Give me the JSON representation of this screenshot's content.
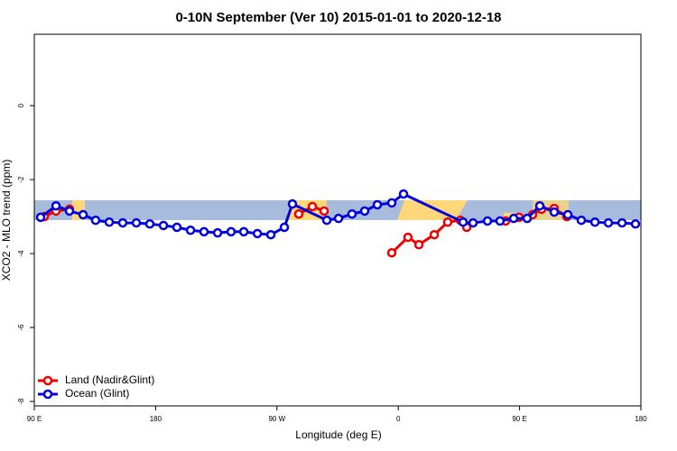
{
  "chart_data": {
    "type": "line",
    "title": "0-10N September (Ver 10)   2015-01-01 to 2020-12-18",
    "x_label": "Longitude (deg E)",
    "y_label": "XCO2 - MLO trend (ppm)",
    "xlim": [
      90,
      540
    ],
    "xticks": [
      {
        "value": 90,
        "label": "90 E"
      },
      180,
      {
        "value": 270,
        "label": "90 W"
      },
      {
        "value": 360,
        "label": "0"
      },
      {
        "value": 450,
        "label": "90 E"
      },
      {
        "value": 540,
        "label": "180"
      }
    ],
    "ylim": [
      -8.12,
      1.93
    ],
    "yticks": [
      0,
      -2,
      -4,
      -6,
      -8
    ],
    "legend": "bottom-left",
    "series": [
      {
        "name": "Land (Nadir&Glint)",
        "color": "#ee0000",
        "x": [
          97.4,
          106.1,
          116.1,
          null,
          286.2,
          296.3,
          305.0,
          null,
          355.2,
          367.2,
          375.3,
          386.7,
          396.7,
          406.1,
          410.8,
          null,
          439.6,
          449.6,
          459.6,
          466.3,
          475.7,
          485.1
        ],
        "values": [
          -3.0,
          -2.85,
          -2.8,
          null,
          -2.93,
          -2.73,
          -2.85,
          null,
          -3.98,
          -3.56,
          -3.76,
          -3.49,
          -3.15,
          -3.1,
          -3.29,
          null,
          -3.12,
          -3.02,
          -2.95,
          -2.8,
          -2.78,
          -3.0
        ]
      },
      {
        "name": "Ocean (Glint)",
        "color": "#0000dd",
        "x": [
          94.7,
          106.1,
          116.1,
          126.2,
          135.5,
          145.6,
          155.6,
          165.7,
          175.7,
          185.8,
          195.8,
          205.9,
          215.9,
          226.0,
          236.0,
          245.4,
          255.5,
          265.5,
          275.5,
          281.5,
          307.0,
          315.7,
          325.7,
          335.1,
          344.5,
          355.2,
          363.9,
          408.1,
          415.5,
          426.2,
          435.5,
          445.6,
          455.6,
          465.0,
          475.7,
          485.8,
          495.8,
          505.9,
          515.9,
          526.0,
          536.0
        ],
        "values": [
          -3.02,
          -2.71,
          -2.85,
          -2.95,
          -3.1,
          -3.15,
          -3.17,
          -3.17,
          -3.2,
          -3.24,
          -3.29,
          -3.37,
          -3.41,
          -3.44,
          -3.41,
          -3.41,
          -3.46,
          -3.49,
          -3.29,
          -2.66,
          -3.1,
          -3.05,
          -2.93,
          -2.85,
          -2.68,
          -2.63,
          -2.39,
          -3.15,
          -3.17,
          -3.12,
          -3.12,
          -3.05,
          -3.05,
          -2.71,
          -2.88,
          -2.95,
          -3.1,
          -3.15,
          -3.17,
          -3.17,
          -3.2
        ]
      }
    ]
  }
}
